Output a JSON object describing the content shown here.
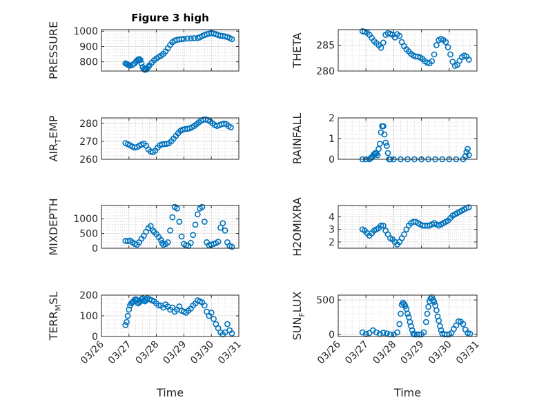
{
  "figure": {
    "title": "Figure 3 high",
    "xlabel": "Time",
    "marker_color": "#0072BD",
    "x_domain": [
      "03/26",
      "03/31"
    ],
    "xticks": [
      "03/26",
      "03/27",
      "03/28",
      "03/29",
      "03/30",
      "03/31"
    ]
  },
  "chart_data": [
    {
      "type": "scatter",
      "ylabel": "PRESSURE",
      "ylim": [
        740,
        1010
      ],
      "yticks": [
        800,
        900,
        1000
      ],
      "grid": true,
      "x": [
        "03/26 21:00",
        "03/26 22:00",
        "03/26 23:00",
        "03/27 00:00",
        "03/27 01:00",
        "03/27 03:00",
        "03/27 05:00",
        "03/27 06:00",
        "03/27 07:00",
        "03/27 08:00",
        "03/27 09:00",
        "03/27 10:00",
        "03/27 11:00",
        "03/27 12:00",
        "03/27 13:00",
        "03/27 14:00",
        "03/27 15:00",
        "03/27 16:00",
        "03/27 17:00",
        "03/27 18:00",
        "03/27 20:00",
        "03/27 22:00",
        "03/28 00:00",
        "03/28 02:00",
        "03/28 04:00",
        "03/28 06:00",
        "03/28 08:00",
        "03/28 10:00",
        "03/28 12:00",
        "03/28 14:00",
        "03/28 16:00",
        "03/28 18:00",
        "03/28 20:00",
        "03/28 22:00",
        "03/29 00:00",
        "03/29 03:00",
        "03/29 06:00",
        "03/29 09:00",
        "03/29 12:00",
        "03/29 14:00",
        "03/29 16:00",
        "03/29 18:00",
        "03/29 20:00",
        "03/29 22:00",
        "03/30 00:00",
        "03/30 02:00",
        "03/30 04:00",
        "03/30 06:00",
        "03/30 08:00",
        "03/30 10:00",
        "03/30 12:00",
        "03/30 14:00",
        "03/30 16:00",
        "03/30 18:00"
      ],
      "y": [
        790,
        786,
        782,
        778,
        775,
        780,
        790,
        800,
        808,
        815,
        818,
        812,
        790,
        765,
        752,
        748,
        750,
        758,
        768,
        778,
        795,
        810,
        822,
        832,
        840,
        852,
        868,
        888,
        910,
        928,
        938,
        944,
        946,
        948,
        950,
        952,
        953,
        954,
        955,
        960,
        968,
        975,
        980,
        985,
        988,
        985,
        980,
        975,
        970,
        968,
        966,
        962,
        955,
        948
      ]
    },
    {
      "type": "scatter",
      "ylabel": "THETA",
      "ylim": [
        280,
        288
      ],
      "yticks": [
        280,
        285
      ],
      "grid": true,
      "x": [
        "03/26 21:00",
        "03/26 23:00",
        "03/27 01:00",
        "03/27 03:00",
        "03/27 05:00",
        "03/27 07:00",
        "03/27 09:00",
        "03/27 11:00",
        "03/27 13:00",
        "03/27 15:00",
        "03/27 17:00",
        "03/27 19:00",
        "03/27 21:00",
        "03/27 23:00",
        "03/28 01:00",
        "03/28 03:00",
        "03/28 05:00",
        "03/28 07:00",
        "03/28 09:00",
        "03/28 11:00",
        "03/28 13:00",
        "03/28 15:00",
        "03/28 17:00",
        "03/28 19:00",
        "03/28 21:00",
        "03/28 23:00",
        "03/29 01:00",
        "03/29 03:00",
        "03/29 05:00",
        "03/29 07:00",
        "03/29 09:00",
        "03/29 11:00",
        "03/29 13:00",
        "03/29 15:00",
        "03/29 17:00",
        "03/29 19:00",
        "03/29 21:00",
        "03/29 23:00",
        "03/30 01:00",
        "03/30 03:00",
        "03/30 05:00",
        "03/30 07:00",
        "03/30 09:00",
        "03/30 11:00",
        "03/30 13:00",
        "03/30 15:00",
        "03/30 17:00"
      ],
      "y": [
        287.7,
        287.6,
        287.4,
        287.0,
        286.4,
        285.8,
        285.4,
        285.0,
        284.5,
        285.5,
        287.0,
        287.3,
        287.2,
        287.0,
        286.5,
        287.1,
        286.8,
        285.6,
        284.8,
        284.2,
        283.8,
        283.3,
        283.0,
        282.8,
        282.8,
        282.6,
        282.3,
        281.9,
        281.6,
        281.5,
        281.9,
        283.2,
        285.0,
        286.0,
        286.2,
        286.0,
        285.6,
        284.6,
        283.2,
        281.8,
        281.0,
        281.2,
        282.0,
        282.7,
        283.0,
        282.8,
        282.2
      ]
    },
    {
      "type": "scatter",
      "ylabel": "AIR_TEMP",
      "ylim": [
        260,
        283
      ],
      "yticks": [
        260,
        270,
        280
      ],
      "grid": true,
      "x": [
        "03/26 21:00",
        "03/26 23:00",
        "03/27 01:00",
        "03/27 03:00",
        "03/27 05:00",
        "03/27 07:00",
        "03/27 09:00",
        "03/27 11:00",
        "03/27 13:00",
        "03/27 15:00",
        "03/27 17:00",
        "03/27 19:00",
        "03/27 21:00",
        "03/27 23:00",
        "03/28 01:00",
        "03/28 03:00",
        "03/28 05:00",
        "03/28 07:00",
        "03/28 09:00",
        "03/28 11:00",
        "03/28 13:00",
        "03/28 15:00",
        "03/28 17:00",
        "03/28 19:00",
        "03/28 21:00",
        "03/28 23:00",
        "03/29 01:00",
        "03/29 03:00",
        "03/29 05:00",
        "03/29 07:00",
        "03/29 09:00",
        "03/29 11:00",
        "03/29 13:00",
        "03/29 15:00",
        "03/29 17:00",
        "03/29 19:00",
        "03/29 21:00",
        "03/29 23:00",
        "03/30 01:00",
        "03/30 03:00",
        "03/30 05:00",
        "03/30 07:00",
        "03/30 09:00",
        "03/30 11:00",
        "03/30 13:00",
        "03/30 15:00",
        "03/30 17:00"
      ],
      "y": [
        269.0,
        268.4,
        267.8,
        267.0,
        266.5,
        266.8,
        267.5,
        268.2,
        268.7,
        267.5,
        265.5,
        264.3,
        264.0,
        264.8,
        266.5,
        267.8,
        268.3,
        268.5,
        268.6,
        268.9,
        270.0,
        271.5,
        273.0,
        274.5,
        275.8,
        276.5,
        276.8,
        276.9,
        277.2,
        277.8,
        278.5,
        279.5,
        280.5,
        281.5,
        282.0,
        282.2,
        281.8,
        281.0,
        280.0,
        279.0,
        278.5,
        279.0,
        279.5,
        279.8,
        279.6,
        278.5,
        277.8
      ]
    },
    {
      "type": "scatter",
      "ylabel": "RAINFALL",
      "ylim": [
        0,
        2
      ],
      "yticks": [
        0,
        1,
        2
      ],
      "grid": true,
      "x": [
        "03/26 21:00",
        "03/27 00:00",
        "03/27 03:00",
        "03/27 04:00",
        "03/27 05:00",
        "03/27 06:00",
        "03/27 07:00",
        "03/27 08:00",
        "03/27 09:00",
        "03/27 10:00",
        "03/27 11:00",
        "03/27 12:00",
        "03/27 13:00",
        "03/27 14:00",
        "03/27 15:00",
        "03/27 16:00",
        "03/27 17:00",
        "03/27 18:00",
        "03/27 19:00",
        "03/27 20:00",
        "03/27 21:00",
        "03/28 00:00",
        "03/28 06:00",
        "03/28 12:00",
        "03/28 18:00",
        "03/29 00:00",
        "03/29 06:00",
        "03/29 12:00",
        "03/29 18:00",
        "03/30 00:00",
        "03/30 06:00",
        "03/30 12:00",
        "03/30 14:00",
        "03/30 15:00",
        "03/30 16:00",
        "03/30 17:00"
      ],
      "y": [
        0,
        0,
        0,
        0.05,
        0.1,
        0.15,
        0.25,
        0.3,
        0.28,
        0.2,
        0.5,
        0.75,
        1.3,
        1.6,
        1.6,
        1.2,
        0.8,
        0.65,
        0.3,
        0,
        0,
        0,
        0,
        0,
        0,
        0,
        0,
        0,
        0,
        0,
        0,
        0,
        0.15,
        0.35,
        0.5,
        0.2
      ]
    },
    {
      "type": "scatter",
      "ylabel": "MIXDEPTH",
      "ylim": [
        0,
        1450
      ],
      "yticks": [
        0,
        500,
        1000
      ],
      "grid": true,
      "x": [
        "03/26 21:00",
        "03/26 23:00",
        "03/27 01:00",
        "03/27 03:00",
        "03/27 05:00",
        "03/27 07:00",
        "03/27 09:00",
        "03/27 11:00",
        "03/27 13:00",
        "03/27 15:00",
        "03/27 17:00",
        "03/27 19:00",
        "03/27 21:00",
        "03/27 22:00",
        "03/28 00:00",
        "03/28 02:00",
        "03/28 04:00",
        "03/28 05:00",
        "03/28 06:00",
        "03/28 08:00",
        "03/28 10:00",
        "03/28 12:00",
        "03/28 14:00",
        "03/28 16:00",
        "03/28 18:00",
        "03/28 20:00",
        "03/28 22:00",
        "03/29 00:00",
        "03/29 02:00",
        "03/29 04:00",
        "03/29 06:00",
        "03/29 08:00",
        "03/29 10:00",
        "03/29 12:00",
        "03/29 14:00",
        "03/29 16:00",
        "03/29 18:00",
        "03/29 20:00",
        "03/29 22:00",
        "03/30 00:00",
        "03/30 02:00",
        "03/30 04:00",
        "03/30 06:00",
        "03/30 08:00",
        "03/30 10:00",
        "03/30 12:00",
        "03/30 14:00",
        "03/30 16:00",
        "03/30 18:00"
      ],
      "y": [
        250,
        240,
        260,
        200,
        150,
        120,
        200,
        320,
        420,
        560,
        680,
        750,
        600,
        550,
        480,
        380,
        280,
        180,
        120,
        140,
        200,
        600,
        1050,
        1400,
        1350,
        900,
        400,
        150,
        100,
        80,
        180,
        450,
        800,
        1150,
        1350,
        1400,
        900,
        200,
        100,
        120,
        150,
        170,
        220,
        700,
        850,
        600,
        200,
        80,
        50
      ]
    },
    {
      "type": "scatter",
      "ylabel": "H2OMIXRA",
      "ylim": [
        1.5,
        4.9
      ],
      "yticks": [
        2,
        3,
        4
      ],
      "grid": true,
      "x": [
        "03/26 21:00",
        "03/26 23:00",
        "03/27 01:00",
        "03/27 03:00",
        "03/27 05:00",
        "03/27 07:00",
        "03/27 09:00",
        "03/27 11:00",
        "03/27 13:00",
        "03/27 15:00",
        "03/27 17:00",
        "03/27 19:00",
        "03/27 21:00",
        "03/27 23:00",
        "03/28 01:00",
        "03/28 03:00",
        "03/28 05:00",
        "03/28 07:00",
        "03/28 09:00",
        "03/28 11:00",
        "03/28 13:00",
        "03/28 15:00",
        "03/28 17:00",
        "03/28 19:00",
        "03/28 21:00",
        "03/28 23:00",
        "03/29 01:00",
        "03/29 03:00",
        "03/29 05:00",
        "03/29 07:00",
        "03/29 09:00",
        "03/29 11:00",
        "03/29 13:00",
        "03/29 15:00",
        "03/29 17:00",
        "03/29 19:00",
        "03/29 21:00",
        "03/29 23:00",
        "03/30 01:00",
        "03/30 03:00",
        "03/30 05:00",
        "03/30 07:00",
        "03/30 09:00",
        "03/30 11:00",
        "03/30 13:00",
        "03/30 15:00",
        "03/30 17:00"
      ],
      "y": [
        3.0,
        2.9,
        2.7,
        2.5,
        2.7,
        2.9,
        3.0,
        3.1,
        3.3,
        3.3,
        2.9,
        2.6,
        2.3,
        2.2,
        2.0,
        1.8,
        2.0,
        2.3,
        2.6,
        3.0,
        3.3,
        3.5,
        3.6,
        3.6,
        3.5,
        3.4,
        3.3,
        3.3,
        3.3,
        3.3,
        3.4,
        3.5,
        3.4,
        3.3,
        3.4,
        3.5,
        3.6,
        3.7,
        3.9,
        4.1,
        4.2,
        4.3,
        4.4,
        4.5,
        4.6,
        4.7,
        4.75
      ]
    },
    {
      "type": "scatter",
      "ylabel": "TERR_MSL",
      "ylim": [
        0,
        200
      ],
      "yticks": [
        0,
        100,
        200
      ],
      "grid": true,
      "x": [
        "03/26 21:00",
        "03/26 22:00",
        "03/26 23:00",
        "03/27 00:00",
        "03/27 01:00",
        "03/27 02:00",
        "03/27 03:00",
        "03/27 04:00",
        "03/27 05:00",
        "03/27 06:00",
        "03/27 07:00",
        "03/27 08:00",
        "03/27 09:00",
        "03/27 10:00",
        "03/27 11:00",
        "03/27 12:00",
        "03/27 13:00",
        "03/27 14:00",
        "03/27 15:00",
        "03/27 16:00",
        "03/27 18:00",
        "03/27 20:00",
        "03/27 22:00",
        "03/28 00:00",
        "03/28 02:00",
        "03/28 04:00",
        "03/28 06:00",
        "03/28 08:00",
        "03/28 10:00",
        "03/28 12:00",
        "03/28 14:00",
        "03/28 16:00",
        "03/28 18:00",
        "03/28 20:00",
        "03/28 22:00",
        "03/29 00:00",
        "03/29 02:00",
        "03/29 04:00",
        "03/29 06:00",
        "03/29 08:00",
        "03/29 10:00",
        "03/29 12:00",
        "03/29 14:00",
        "03/29 16:00",
        "03/29 18:00",
        "03/29 20:00",
        "03/29 22:00",
        "03/30 00:00",
        "03/30 02:00",
        "03/30 04:00",
        "03/30 06:00",
        "03/30 08:00",
        "03/30 10:00",
        "03/30 12:00",
        "03/30 14:00",
        "03/30 16:00",
        "03/30 18:00"
      ],
      "y": [
        55,
        70,
        100,
        130,
        150,
        160,
        165,
        170,
        178,
        180,
        175,
        160,
        165,
        170,
        180,
        185,
        175,
        170,
        178,
        185,
        180,
        175,
        170,
        160,
        150,
        150,
        140,
        155,
        145,
        130,
        140,
        120,
        130,
        145,
        125,
        120,
        115,
        125,
        135,
        150,
        160,
        175,
        170,
        165,
        150,
        120,
        100,
        115,
        85,
        60,
        40,
        20,
        10,
        20,
        60,
        30,
        15
      ]
    },
    {
      "type": "scatter",
      "ylabel": "SUN_FLUX",
      "ylim": [
        -30,
        570
      ],
      "yticks": [
        0,
        500
      ],
      "grid": true,
      "x": [
        "03/26 21:00",
        "03/27 00:00",
        "03/27 03:00",
        "03/27 06:00",
        "03/27 09:00",
        "03/27 12:00",
        "03/27 15:00",
        "03/27 18:00",
        "03/27 21:00",
        "03/28 00:00",
        "03/28 03:00",
        "03/28 05:00",
        "03/28 06:00",
        "03/28 07:00",
        "03/28 08:00",
        "03/28 09:00",
        "03/28 10:00",
        "03/28 11:00",
        "03/28 12:00",
        "03/28 13:00",
        "03/28 14:00",
        "03/28 15:00",
        "03/28 16:00",
        "03/28 17:00",
        "03/28 18:00",
        "03/28 20:00",
        "03/28 22:00",
        "03/29 00:00",
        "03/29 02:00",
        "03/29 04:00",
        "03/29 05:00",
        "03/29 06:00",
        "03/29 07:00",
        "03/29 08:00",
        "03/29 09:00",
        "03/29 10:00",
        "03/29 11:00",
        "03/29 12:00",
        "03/29 13:00",
        "03/29 14:00",
        "03/29 15:00",
        "03/29 16:00",
        "03/29 17:00",
        "03/29 18:00",
        "03/29 20:00",
        "03/29 22:00",
        "03/30 00:00",
        "03/30 02:00",
        "03/30 04:00",
        "03/30 06:00",
        "03/30 08:00",
        "03/30 10:00",
        "03/30 12:00",
        "03/30 14:00",
        "03/30 16:00",
        "03/30 18:00"
      ],
      "y": [
        30,
        5,
        20,
        60,
        30,
        10,
        25,
        15,
        0,
        0,
        30,
        150,
        300,
        430,
        460,
        440,
        410,
        370,
        300,
        250,
        180,
        120,
        60,
        10,
        0,
        0,
        0,
        0,
        30,
        180,
        300,
        400,
        480,
        520,
        540,
        500,
        470,
        420,
        350,
        260,
        200,
        120,
        60,
        10,
        0,
        0,
        0,
        20,
        80,
        130,
        190,
        185,
        150,
        70,
        20,
        10
      ]
    }
  ]
}
